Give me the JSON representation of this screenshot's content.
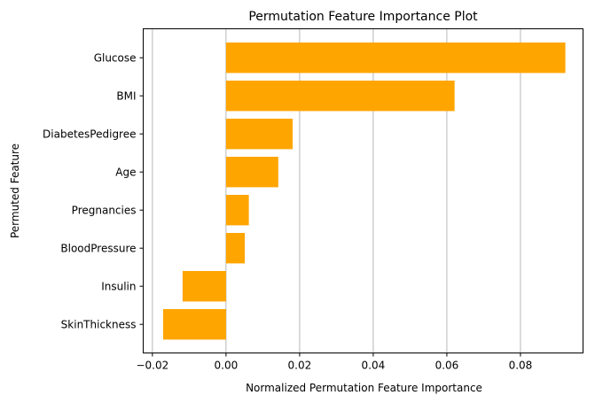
{
  "chart_data": {
    "type": "bar",
    "orientation": "horizontal",
    "title": "Permutation Feature Importance Plot",
    "xlabel": "Normalized Permutation Feature Importance",
    "ylabel": "Permuted Feature",
    "categories": [
      "Glucose",
      "BMI",
      "DiabetesPedigree",
      "Age",
      "Pregnancies",
      "BloodPressure",
      "Insulin",
      "SkinThickness"
    ],
    "values": [
      0.0922,
      0.0621,
      0.0181,
      0.0142,
      0.0062,
      0.0051,
      -0.0118,
      -0.0171
    ],
    "xlim": [
      -0.0225,
      0.097
    ],
    "xticks": [
      -0.02,
      0.0,
      0.02,
      0.04,
      0.06,
      0.08
    ],
    "xtick_labels": [
      "−0.02",
      "0.00",
      "0.02",
      "0.04",
      "0.06",
      "0.08"
    ],
    "grid": "vertical",
    "bar_color": "#ffa500",
    "grid_color": "#b0b0b0"
  }
}
